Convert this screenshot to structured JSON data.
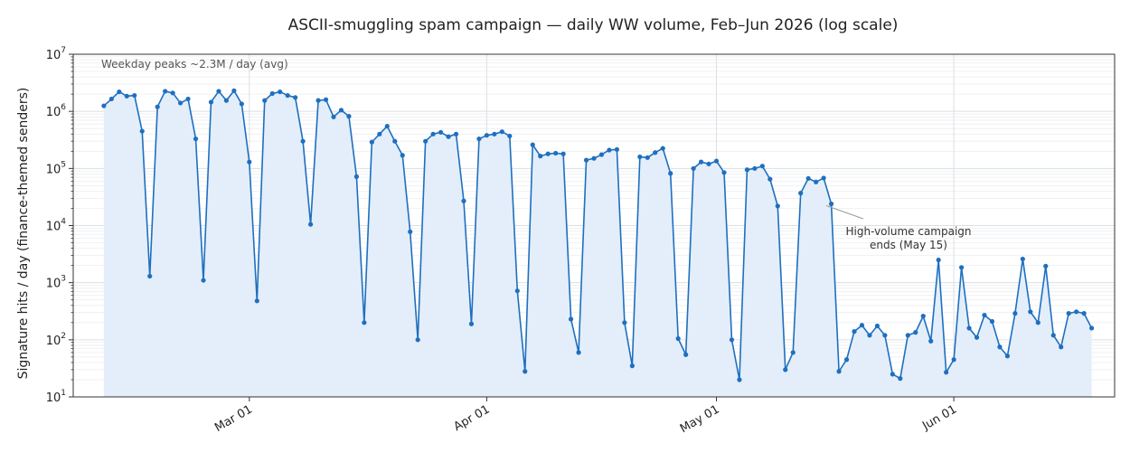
{
  "chart_data": {
    "type": "line",
    "title": "ASCII-smuggling spam campaign — daily WW volume, Feb–Jun 2026 (log scale)",
    "ylabel": "Signature hits / day (finance-themed senders)",
    "xlabel": "",
    "y_scale": "log",
    "ylim": [
      10,
      10000000
    ],
    "xlim": [
      "2026-02-06",
      "2026-06-22"
    ],
    "x_start": "2026-02-10",
    "grid": true,
    "fill_under": true,
    "line_color": "#1f6fbf",
    "fill_color": "#e3eefa",
    "x_ticks": [
      {
        "date": "2026-03-01",
        "label": "Mar 01"
      },
      {
        "date": "2026-04-01",
        "label": "Apr 01"
      },
      {
        "date": "2026-05-01",
        "label": "May 01"
      },
      {
        "date": "2026-06-01",
        "label": "Jun 01"
      }
    ],
    "y_ticks": [
      {
        "value": 10,
        "base": "10",
        "exp": "1"
      },
      {
        "value": 100,
        "base": "10",
        "exp": "2"
      },
      {
        "value": 1000,
        "base": "10",
        "exp": "3"
      },
      {
        "value": 10000,
        "base": "10",
        "exp": "4"
      },
      {
        "value": 100000,
        "base": "10",
        "exp": "5"
      },
      {
        "value": 1000000,
        "base": "10",
        "exp": "6"
      },
      {
        "value": 10000000,
        "base": "10",
        "exp": "7"
      }
    ],
    "values": [
      1250000,
      1650000,
      2200000,
      1850000,
      1900000,
      450000,
      1300,
      1200000,
      2250000,
      2100000,
      1400000,
      1650000,
      330000,
      1100,
      1450000,
      2250000,
      1550000,
      2300000,
      1350000,
      130000,
      480,
      1550000,
      2050000,
      2200000,
      1900000,
      1750000,
      300000,
      10500,
      1550000,
      1600000,
      800000,
      1050000,
      820000,
      72000,
      200,
      290000,
      400000,
      550000,
      300000,
      170000,
      7800,
      100,
      300000,
      400000,
      430000,
      360000,
      400000,
      27000,
      190,
      330000,
      380000,
      400000,
      440000,
      370000,
      720,
      28,
      260000,
      165000,
      180000,
      185000,
      180000,
      230,
      60,
      140000,
      150000,
      175000,
      210000,
      215000,
      200,
      35,
      160000,
      155000,
      190000,
      225000,
      82000,
      105,
      55,
      100000,
      130000,
      120000,
      135000,
      85000,
      100,
      20,
      95000,
      100000,
      110000,
      65000,
      22000,
      30,
      60,
      37000,
      67000,
      58000,
      68000,
      24000,
      28,
      45,
      140,
      180,
      120,
      175,
      120,
      25,
      21,
      120,
      135,
      260,
      95,
      2500,
      27,
      45,
      1850,
      160,
      110,
      270,
      210,
      75,
      52,
      290,
      2600,
      310,
      200,
      1950,
      120,
      75,
      290,
      310,
      290,
      160
    ],
    "annotations": [
      {
        "text": "High-volume campaign",
        "text2": "ends (May 15)",
        "date": "2026-05-15",
        "value": 24000
      }
    ],
    "note": "Weekday peaks ~2.3M / day (avg)"
  }
}
